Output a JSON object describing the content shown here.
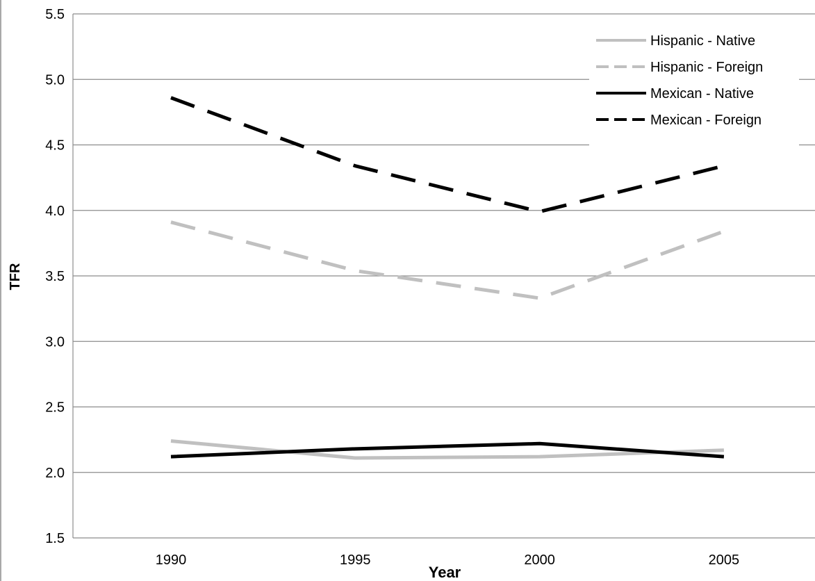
{
  "chart_data": {
    "type": "line",
    "title": "",
    "xlabel": "Year",
    "ylabel": "TFR",
    "categories": [
      "1990",
      "1995",
      "2000",
      "2005"
    ],
    "yticks": [
      "1.5",
      "2.0",
      "2.5",
      "3.0",
      "3.5",
      "4.0",
      "4.5",
      "5.0",
      "5.5"
    ],
    "ylim": [
      1.5,
      5.5
    ],
    "grid": "horizontal",
    "legend_position": "top-right",
    "series": [
      {
        "name": "Hispanic - Native",
        "values": [
          2.24,
          2.11,
          2.12,
          2.17
        ],
        "color": "#c0c0c0",
        "style": "solid"
      },
      {
        "name": "Hispanic - Foreign",
        "values": [
          3.91,
          3.54,
          3.33,
          3.84
        ],
        "color": "#c0c0c0",
        "style": "dashed"
      },
      {
        "name": "Mexican - Native",
        "values": [
          2.12,
          2.18,
          2.22,
          2.12
        ],
        "color": "#000000",
        "style": "solid"
      },
      {
        "name": "Mexican - Foreign",
        "values": [
          4.86,
          4.34,
          3.99,
          4.34
        ],
        "color": "#000000",
        "style": "dashed"
      }
    ]
  }
}
